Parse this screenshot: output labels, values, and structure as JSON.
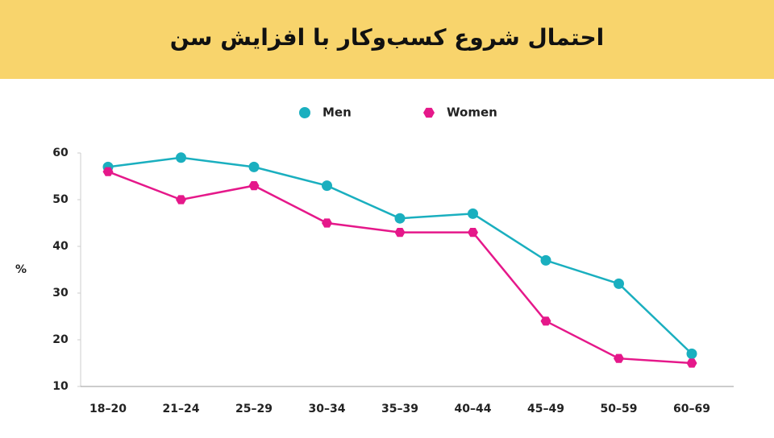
{
  "chart_data": {
    "type": "line",
    "title": "احتمال شروع کسب‌وکار با افزایش سن",
    "y_label": "%",
    "categories": [
      "18–20",
      "21–24",
      "25–29",
      "30–34",
      "35–39",
      "40–44",
      "45–49",
      "50–59",
      "60–69"
    ],
    "series": [
      {
        "name": "Men",
        "color": "#1aafbf",
        "values": [
          57,
          59,
          57,
          53,
          46,
          47,
          37,
          32,
          17
        ]
      },
      {
        "name": "Women",
        "color": "#e5188a",
        "values": [
          56,
          50,
          53,
          45,
          43,
          43,
          24,
          16,
          15
        ]
      }
    ],
    "ylim": [
      10,
      60
    ],
    "yticks": [
      10,
      20,
      30,
      40,
      50,
      60
    ],
    "grid": false
  }
}
